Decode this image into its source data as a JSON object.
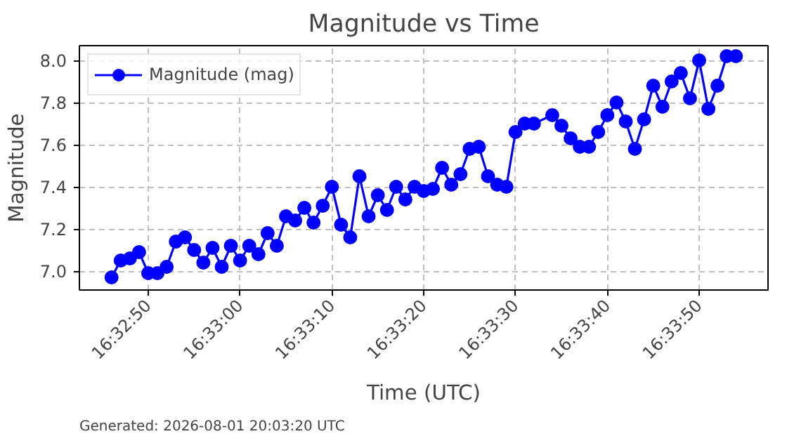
{
  "chart_data": {
    "type": "line",
    "title": "Magnitude vs Time",
    "xlabel": "Time (UTC)",
    "ylabel": "Magnitude",
    "annotations": [
      "Generated: 2026-08-01 20:03:20 UTC"
    ],
    "x": [
      16.546111,
      16.546389,
      16.546667,
      16.546944,
      16.547222,
      16.5475,
      16.547778,
      16.548056,
      16.548333,
      16.548611,
      16.548889,
      16.549167,
      16.549444,
      16.549722,
      16.55,
      16.550278,
      16.550556,
      16.550833,
      16.551111,
      16.551389,
      16.551667,
      16.551944,
      16.552222,
      16.5525,
      16.552778,
      16.553056,
      16.553333,
      16.553611,
      16.553889,
      16.554167,
      16.554444,
      16.554722,
      16.555,
      16.555278,
      16.555556,
      16.555833,
      16.556111,
      16.556389,
      16.556667,
      16.556944,
      16.557222,
      16.5575,
      16.557778,
      16.558056,
      16.558333,
      16.558611,
      16.558889,
      16.559444,
      16.559722,
      16.56,
      16.560278,
      16.560556,
      16.560833,
      16.561111,
      16.561389,
      16.561667,
      16.561944,
      16.562222,
      16.5625,
      16.562778,
      16.563056,
      16.563333,
      16.563611,
      16.563889,
      16.564167,
      16.564444,
      16.564722,
      16.565
    ],
    "series": [
      {
        "name": "Magnitude (mag)",
        "color": "#0000ff",
        "values": [
          6.97,
          7.05,
          7.06,
          7.09,
          6.99,
          6.99,
          7.02,
          7.14,
          7.16,
          7.1,
          7.04,
          7.11,
          7.02,
          7.12,
          7.05,
          7.12,
          7.08,
          7.18,
          7.12,
          7.26,
          7.24,
          7.3,
          7.23,
          7.31,
          7.4,
          7.22,
          7.16,
          7.45,
          7.26,
          7.36,
          7.29,
          7.4,
          7.34,
          7.4,
          7.38,
          7.39,
          7.49,
          7.41,
          7.46,
          7.58,
          7.59,
          7.45,
          7.41,
          7.4,
          7.66,
          7.7,
          7.7,
          7.74,
          7.69,
          7.63,
          7.59,
          7.59,
          7.66,
          7.74,
          7.8,
          7.71,
          7.58,
          7.72,
          7.88,
          7.78,
          7.9,
          7.94,
          7.82,
          8.0,
          7.77,
          7.88,
          8.02,
          8.02
        ]
      }
    ],
    "xlim": [
      16.545139,
      16.565972
    ],
    "xticks": [
      {
        "value": 16.547222,
        "label": "16:32:50"
      },
      {
        "value": 16.55,
        "label": "16:33:00"
      },
      {
        "value": 16.552778,
        "label": "16:33:10"
      },
      {
        "value": 16.555556,
        "label": "16:33:20"
      },
      {
        "value": 16.558333,
        "label": "16:33:30"
      },
      {
        "value": 16.561111,
        "label": "16:33:40"
      },
      {
        "value": 16.563889,
        "label": "16:33:50"
      }
    ],
    "ylim": [
      6.91,
      8.07
    ],
    "yticks": [
      {
        "value": 7.0,
        "label": "7.0"
      },
      {
        "value": 7.2,
        "label": "7.2"
      },
      {
        "value": 7.4,
        "label": "7.4"
      },
      {
        "value": 7.6,
        "label": "7.6"
      },
      {
        "value": 7.8,
        "label": "7.8"
      },
      {
        "value": 8.0,
        "label": "8.0"
      }
    ],
    "grid": true,
    "legend": "top left",
    "marker": "circle",
    "line_style": "solid"
  }
}
